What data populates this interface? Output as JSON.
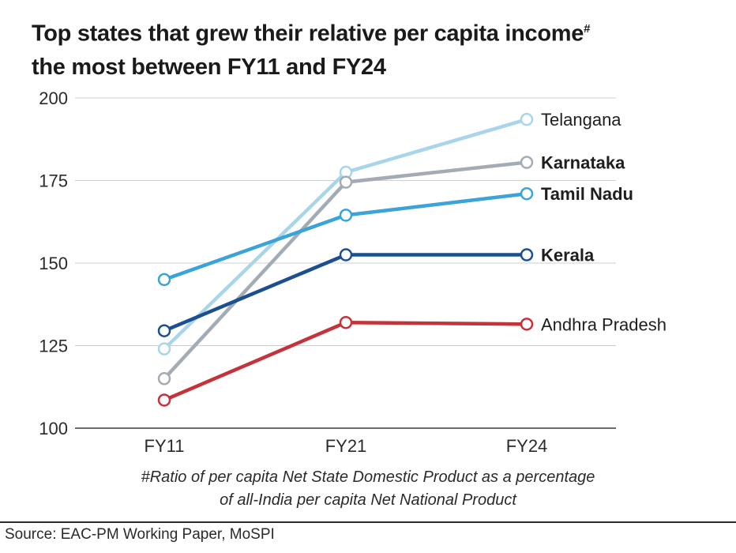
{
  "title": {
    "line1": "Top states that grew their relative per capita income",
    "mark": "#",
    "line2": "the most between FY11 and FY24"
  },
  "footnote": {
    "line1": "#Ratio of per capita Net State Domestic Product as a percentage",
    "line2": "of all-India per capita Net National Product"
  },
  "source": "Source: EAC-PM Working Paper, MoSPI",
  "chart_data": {
    "type": "line",
    "title": "Top states that grew their relative per capita income# the most between FY11 and FY24",
    "x": [
      "FY11",
      "FY21",
      "FY24"
    ],
    "xlabel": "",
    "ylabel": "",
    "ylim": [
      100,
      200
    ],
    "yticks": [
      100,
      125,
      150,
      175,
      200
    ],
    "grid": true,
    "series": [
      {
        "name": "Telangana",
        "values": [
          124,
          177.5,
          193.5
        ],
        "color": "#a9d5ea",
        "bold": false
      },
      {
        "name": "Karnataka",
        "values": [
          115,
          174.5,
          180.5
        ],
        "color": "#a3acb4",
        "bold": true
      },
      {
        "name": "Tamil Nadu",
        "values": [
          145,
          164.5,
          171
        ],
        "color": "#3aa3d8",
        "bold": true
      },
      {
        "name": "Kerala",
        "values": [
          129.5,
          152.5,
          152.5
        ],
        "color": "#1b4f8f",
        "bold": true
      },
      {
        "name": "Andhra Pradesh",
        "values": [
          108.5,
          132,
          131.5
        ],
        "color": "#c4323a",
        "bold": false
      }
    ]
  }
}
